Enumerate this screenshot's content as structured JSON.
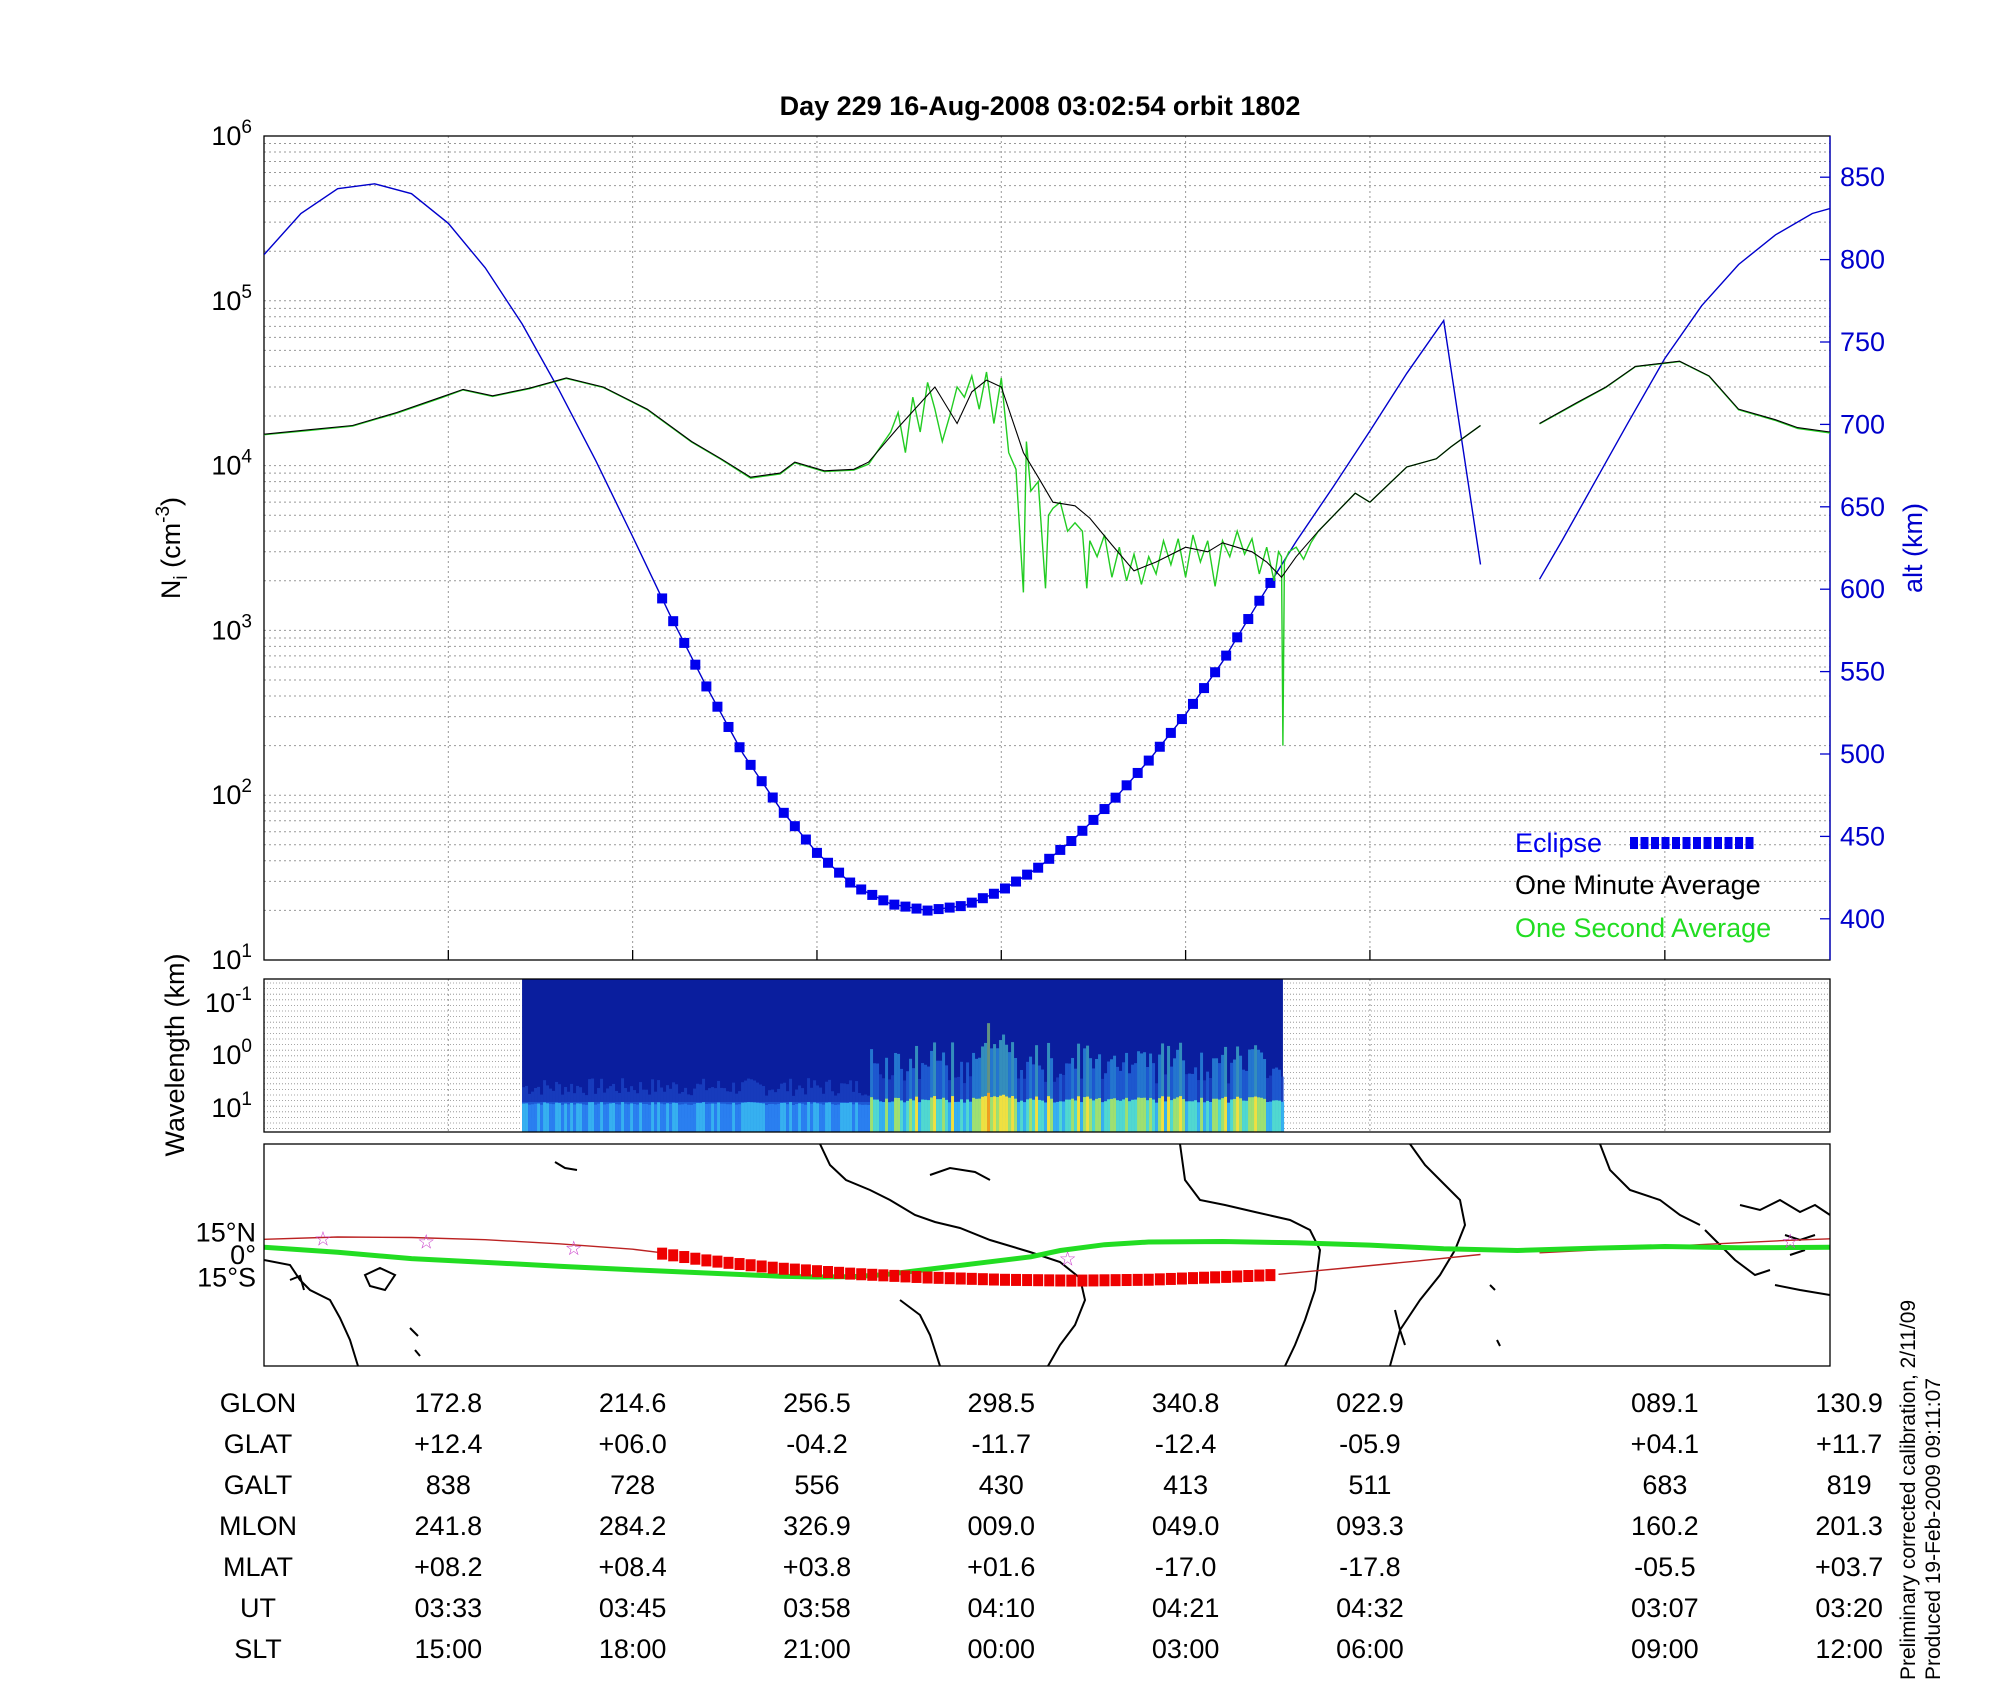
{
  "title": "Day 229  16-Aug-2008 03:02:54   orbit 1802",
  "colors": {
    "alt": "#0000cc",
    "eclipse": "#0000ee",
    "minute": "#000000",
    "second": "#22cc22",
    "track_green": "#22dd22",
    "track_red": "#ee0000",
    "orbit_thin": "#bb2222",
    "star": "#cc44cc",
    "spec_bg": "#0a1e9e"
  },
  "chart_data": [
    {
      "type": "line",
      "title": "Day 229  16-Aug-2008 03:02:54   orbit 1802",
      "ylabel": "N",
      "ylabel_sub": "i",
      "ylabel_unit": "(cm",
      "ylabel_unit_exp": "-3",
      "ylabel_tail": ")",
      "yscale": "log",
      "ylim": [
        10,
        1000000
      ],
      "yticks": [
        {
          "base": "10",
          "exp": "1"
        },
        {
          "base": "10",
          "exp": "2"
        },
        {
          "base": "10",
          "exp": "3"
        },
        {
          "base": "10",
          "exp": "4"
        },
        {
          "base": "10",
          "exp": "5"
        },
        {
          "base": "10",
          "exp": "6"
        }
      ],
      "y2label": "alt (km)",
      "y2lim": [
        375,
        875
      ],
      "y2ticks": [
        "400",
        "450",
        "500",
        "550",
        "600",
        "650",
        "700",
        "750",
        "800",
        "850"
      ],
      "x": [
        0,
        8.6
      ],
      "grid": true,
      "legend": {
        "position": "lower-right",
        "entries": [
          "Eclipse",
          "One Minute Average",
          "One Second Average"
        ]
      },
      "series_one_minute_average": [
        [
          0.0,
          15500
        ],
        [
          0.3,
          16500
        ],
        [
          0.6,
          17500
        ],
        [
          0.9,
          21000
        ],
        [
          1.2,
          26000
        ],
        [
          1.35,
          29000
        ],
        [
          1.55,
          26500
        ],
        [
          1.8,
          29500
        ],
        [
          2.05,
          34000
        ],
        [
          2.3,
          30000
        ],
        [
          2.6,
          22000
        ],
        [
          2.9,
          14000
        ],
        [
          3.1,
          11000
        ],
        [
          3.3,
          8500
        ],
        [
          3.5,
          9000
        ],
        [
          3.6,
          10500
        ],
        [
          3.8,
          9300
        ],
        [
          4.0,
          9500
        ],
        [
          4.1,
          10500
        ],
        [
          4.3,
          17000
        ],
        [
          4.55,
          30000
        ],
        [
          4.7,
          18000
        ],
        [
          4.8,
          28000
        ],
        [
          4.9,
          33000
        ],
        [
          5.0,
          30000
        ],
        [
          5.15,
          12000
        ],
        [
          5.25,
          8500
        ],
        [
          5.35,
          6000
        ],
        [
          5.5,
          5700
        ],
        [
          5.6,
          4800
        ],
        [
          5.75,
          3300
        ],
        [
          5.9,
          2300
        ],
        [
          6.05,
          2600
        ],
        [
          6.25,
          3200
        ],
        [
          6.4,
          3000
        ],
        [
          6.5,
          3400
        ],
        [
          6.7,
          3000
        ],
        [
          6.8,
          2600
        ],
        [
          6.9,
          2100
        ],
        [
          7.0,
          2800
        ],
        [
          7.15,
          4000
        ],
        [
          7.4,
          6800
        ],
        [
          7.5,
          6000
        ],
        [
          7.75,
          9800
        ],
        [
          7.95,
          11000
        ],
        [
          8.05,
          13000
        ],
        [
          8.25,
          17500
        ]
      ],
      "series_one_minute_average_2": [
        [
          8.65,
          18000
        ],
        [
          8.9,
          24000
        ],
        [
          9.1,
          30000
        ],
        [
          9.3,
          40000
        ],
        [
          9.6,
          43000
        ],
        [
          9.8,
          35000
        ],
        [
          10.0,
          22000
        ],
        [
          10.25,
          19000
        ],
        [
          10.4,
          17000
        ],
        [
          10.62,
          16000
        ]
      ],
      "series_one_second_average": [
        [
          0.0,
          15400
        ],
        [
          0.3,
          16300
        ],
        [
          0.6,
          17400
        ],
        [
          0.9,
          20800
        ],
        [
          1.2,
          25700
        ],
        [
          1.35,
          28800
        ],
        [
          1.55,
          26300
        ],
        [
          1.8,
          29300
        ],
        [
          2.05,
          33800
        ],
        [
          2.3,
          29800
        ],
        [
          2.6,
          21800
        ],
        [
          2.9,
          13900
        ],
        [
          3.1,
          10900
        ],
        [
          3.3,
          8400
        ],
        [
          3.5,
          8900
        ],
        [
          3.6,
          10400
        ],
        [
          3.8,
          9200
        ],
        [
          4.0,
          9400
        ],
        [
          4.1,
          10200
        ],
        [
          4.25,
          16000
        ],
        [
          4.3,
          21000
        ],
        [
          4.35,
          12000
        ],
        [
          4.4,
          26000
        ],
        [
          4.45,
          16000
        ],
        [
          4.5,
          32000
        ],
        [
          4.55,
          22000
        ],
        [
          4.6,
          14000
        ],
        [
          4.65,
          20000
        ],
        [
          4.7,
          30000
        ],
        [
          4.75,
          26000
        ],
        [
          4.8,
          35000
        ],
        [
          4.85,
          22000
        ],
        [
          4.9,
          37000
        ],
        [
          4.95,
          18000
        ],
        [
          5.0,
          34000
        ],
        [
          5.05,
          12000
        ],
        [
          5.1,
          9500
        ],
        [
          5.15,
          1700
        ],
        [
          5.17,
          14000
        ],
        [
          5.2,
          7000
        ],
        [
          5.25,
          8000
        ],
        [
          5.3,
          1800
        ],
        [
          5.32,
          5000
        ],
        [
          5.35,
          5500
        ],
        [
          5.4,
          6000
        ],
        [
          5.45,
          4000
        ],
        [
          5.5,
          4500
        ],
        [
          5.55,
          4000
        ],
        [
          5.58,
          1800
        ],
        [
          5.6,
          3500
        ],
        [
          5.65,
          2800
        ],
        [
          5.7,
          3800
        ],
        [
          5.75,
          2100
        ],
        [
          5.8,
          3200
        ],
        [
          5.85,
          2000
        ],
        [
          5.9,
          2900
        ],
        [
          5.95,
          1900
        ],
        [
          6.0,
          2800
        ],
        [
          6.05,
          2200
        ],
        [
          6.1,
          3500
        ],
        [
          6.15,
          2500
        ],
        [
          6.2,
          3600
        ],
        [
          6.25,
          2100
        ],
        [
          6.3,
          3800
        ],
        [
          6.35,
          2600
        ],
        [
          6.4,
          3500
        ],
        [
          6.45,
          1850
        ],
        [
          6.5,
          3500
        ],
        [
          6.55,
          2800
        ],
        [
          6.6,
          4000
        ],
        [
          6.65,
          2900
        ],
        [
          6.7,
          3600
        ],
        [
          6.75,
          2200
        ],
        [
          6.8,
          3200
        ],
        [
          6.85,
          2000
        ],
        [
          6.88,
          3000
        ],
        [
          6.9,
          2800
        ],
        [
          6.91,
          200
        ],
        [
          6.92,
          2600
        ],
        [
          6.95,
          3000
        ],
        [
          7.0,
          3200
        ],
        [
          7.05,
          2700
        ],
        [
          7.1,
          3400
        ],
        [
          7.15,
          4000
        ],
        [
          7.4,
          6800
        ],
        [
          7.5,
          6000
        ],
        [
          7.75,
          9800
        ],
        [
          7.95,
          11000
        ],
        [
          8.05,
          13000
        ],
        [
          8.25,
          17500
        ]
      ],
      "series_one_second_average_2": [
        [
          8.65,
          17900
        ],
        [
          8.9,
          23800
        ],
        [
          9.1,
          29800
        ],
        [
          9.3,
          39800
        ],
        [
          9.6,
          42800
        ],
        [
          9.8,
          34800
        ],
        [
          10.0,
          21800
        ],
        [
          10.25,
          18800
        ],
        [
          10.4,
          16800
        ],
        [
          10.62,
          15800
        ]
      ],
      "altitude_km": [
        [
          0.0,
          803
        ],
        [
          0.25,
          828
        ],
        [
          0.5,
          843
        ],
        [
          0.75,
          846
        ],
        [
          1.0,
          840
        ],
        [
          1.25,
          822
        ],
        [
          1.5,
          795
        ],
        [
          1.75,
          761
        ],
        [
          2.0,
          721
        ],
        [
          2.25,
          678
        ],
        [
          2.5,
          632
        ],
        [
          2.75,
          585
        ],
        [
          3.0,
          541
        ],
        [
          3.25,
          500
        ],
        [
          3.5,
          467
        ],
        [
          3.75,
          440
        ],
        [
          4.0,
          420
        ],
        [
          4.25,
          409
        ],
        [
          4.5,
          405
        ],
        [
          4.75,
          408
        ],
        [
          5.0,
          417
        ],
        [
          5.25,
          431
        ],
        [
          5.5,
          449
        ],
        [
          5.75,
          471
        ],
        [
          6.0,
          496
        ],
        [
          6.25,
          524
        ],
        [
          6.5,
          556
        ],
        [
          6.75,
          593
        ],
        [
          7.0,
          629
        ],
        [
          7.25,
          662
        ],
        [
          7.5,
          696
        ],
        [
          7.75,
          731
        ],
        [
          8.0,
          763
        ],
        [
          8.25,
          615
        ]
      ],
      "altitude_km_2": [
        [
          8.65,
          606
        ],
        [
          8.8,
          629
        ],
        [
          9.0,
          661
        ],
        [
          9.25,
          701
        ],
        [
          9.5,
          740
        ],
        [
          9.75,
          772
        ],
        [
          10.0,
          797
        ],
        [
          10.25,
          815
        ],
        [
          10.5,
          828
        ],
        [
          10.62,
          831
        ]
      ],
      "eclipse_start_x": 2.7,
      "eclipse_end_x": 6.88
    },
    {
      "type": "heatmap",
      "ylabel": "Wavelength (km)",
      "yticks": [
        {
          "base": "10",
          "exp": "-1"
        },
        {
          "base": "10",
          "exp": "0"
        },
        {
          "base": "10",
          "exp": "1"
        }
      ],
      "x_range": [
        1.75,
        6.91
      ],
      "bright_bands": [
        {
          "x": 4.25,
          "level": 0.4
        },
        {
          "x": 4.55,
          "level": 0.5
        },
        {
          "x": 4.9,
          "level": 0.95
        },
        {
          "x": 5.0,
          "level": 0.9
        },
        {
          "x": 5.05,
          "level": 0.7
        },
        {
          "x": 5.2,
          "level": 0.6
        },
        {
          "x": 5.5,
          "level": 0.55
        },
        {
          "x": 5.75,
          "level": 0.7
        },
        {
          "x": 5.95,
          "level": 0.65
        },
        {
          "x": 6.2,
          "level": 0.7
        },
        {
          "x": 6.45,
          "level": 0.6
        },
        {
          "x": 6.7,
          "level": 0.7
        },
        {
          "x": 6.85,
          "level": 0.55
        }
      ]
    },
    {
      "type": "map",
      "yticks": [
        "15°N",
        "0°",
        "15°S"
      ],
      "track_green": [
        [
          0,
          1.7
        ],
        [
          0.5,
          0.6
        ],
        [
          1.0,
          -0.8
        ],
        [
          1.6,
          -1.8
        ],
        [
          2.0,
          -2.5
        ],
        [
          2.5,
          -3.3
        ],
        [
          3.0,
          -4.0
        ],
        [
          3.5,
          -4.7
        ],
        [
          3.75,
          -4.9
        ],
        [
          4.0,
          -4.8
        ],
        [
          4.2,
          -4.4
        ],
        [
          4.5,
          -3.2
        ],
        [
          4.9,
          -1.6
        ],
        [
          5.2,
          -0.4
        ],
        [
          5.4,
          1.0
        ],
        [
          5.7,
          2.3
        ],
        [
          6.0,
          2.9
        ],
        [
          6.5,
          3.0
        ],
        [
          7.0,
          2.7
        ],
        [
          7.5,
          2.2
        ],
        [
          8.0,
          1.4
        ],
        [
          8.5,
          1.0
        ],
        [
          9.0,
          1.5
        ],
        [
          9.5,
          1.9
        ],
        [
          10.0,
          1.6
        ],
        [
          10.62,
          1.7
        ]
      ],
      "track_red": [
        [
          2.7,
          0.3
        ],
        [
          3.0,
          -1.2
        ],
        [
          3.5,
          -3.0
        ],
        [
          4.0,
          -4.2
        ],
        [
          4.5,
          -5.0
        ],
        [
          5.0,
          -5.5
        ],
        [
          5.5,
          -5.7
        ],
        [
          6.0,
          -5.5
        ],
        [
          6.5,
          -4.9
        ],
        [
          6.88,
          -4.4
        ]
      ],
      "orbit_thin": [
        [
          0,
          3.5
        ],
        [
          0.5,
          4.0
        ],
        [
          1.0,
          3.9
        ],
        [
          1.5,
          3.4
        ],
        [
          2.0,
          2.5
        ],
        [
          2.5,
          1.3
        ],
        [
          2.7,
          0.5
        ]
      ],
      "orbit_thin_2": [
        [
          6.88,
          -4.3
        ],
        [
          7.3,
          -3.0
        ],
        [
          7.8,
          -1.4
        ],
        [
          8.25,
          0.1
        ]
      ],
      "orbit_thin_3": [
        [
          8.65,
          0.5
        ],
        [
          9.2,
          1.4
        ],
        [
          9.8,
          2.4
        ],
        [
          10.3,
          3.2
        ],
        [
          10.62,
          3.6
        ]
      ],
      "stars": [
        [
          0.4,
          3.7
        ],
        [
          1.1,
          3.0
        ],
        [
          2.1,
          1.6
        ],
        [
          5.45,
          -0.8
        ],
        [
          10.35,
          3.1
        ]
      ]
    }
  ],
  "table": {
    "row_labels": [
      "GLON",
      "GLAT",
      "GALT",
      "MLON",
      "MLAT",
      "UT",
      "SLT"
    ],
    "columns": [
      {
        "x": 1.25,
        "values": [
          "172.8",
          "+12.4",
          "838",
          "241.8",
          "+08.2",
          "03:33",
          "15:00"
        ]
      },
      {
        "x": 2.5,
        "values": [
          "214.6",
          "+06.0",
          "728",
          "284.2",
          "+08.4",
          "03:45",
          "18:00"
        ]
      },
      {
        "x": 3.75,
        "values": [
          "256.5",
          "-04.2",
          "556",
          "326.9",
          "+03.8",
          "03:58",
          "21:00"
        ]
      },
      {
        "x": 5.0,
        "values": [
          "298.5",
          "-11.7",
          "430",
          "009.0",
          "+01.6",
          "04:10",
          "00:00"
        ]
      },
      {
        "x": 6.25,
        "values": [
          "340.8",
          "-12.4",
          "413",
          "049.0",
          "-17.0",
          "04:21",
          "03:00"
        ]
      },
      {
        "x": 7.5,
        "values": [
          "022.9",
          "-05.9",
          "511",
          "093.3",
          "-17.8",
          "04:32",
          "06:00"
        ]
      },
      {
        "x": 9.5,
        "values": [
          "089.1",
          "+04.1",
          "683",
          "160.2",
          "-05.5",
          "03:07",
          "09:00"
        ]
      },
      {
        "x": 10.75,
        "values": [
          "130.9",
          "+11.7",
          "819",
          "201.3",
          "+03.7",
          "03:20",
          "12:00"
        ]
      }
    ]
  },
  "footer": {
    "line1": "Preliminary corrected calibration, 2/11/09",
    "line2": "Produced 19-Feb-2009 09:11:07"
  }
}
